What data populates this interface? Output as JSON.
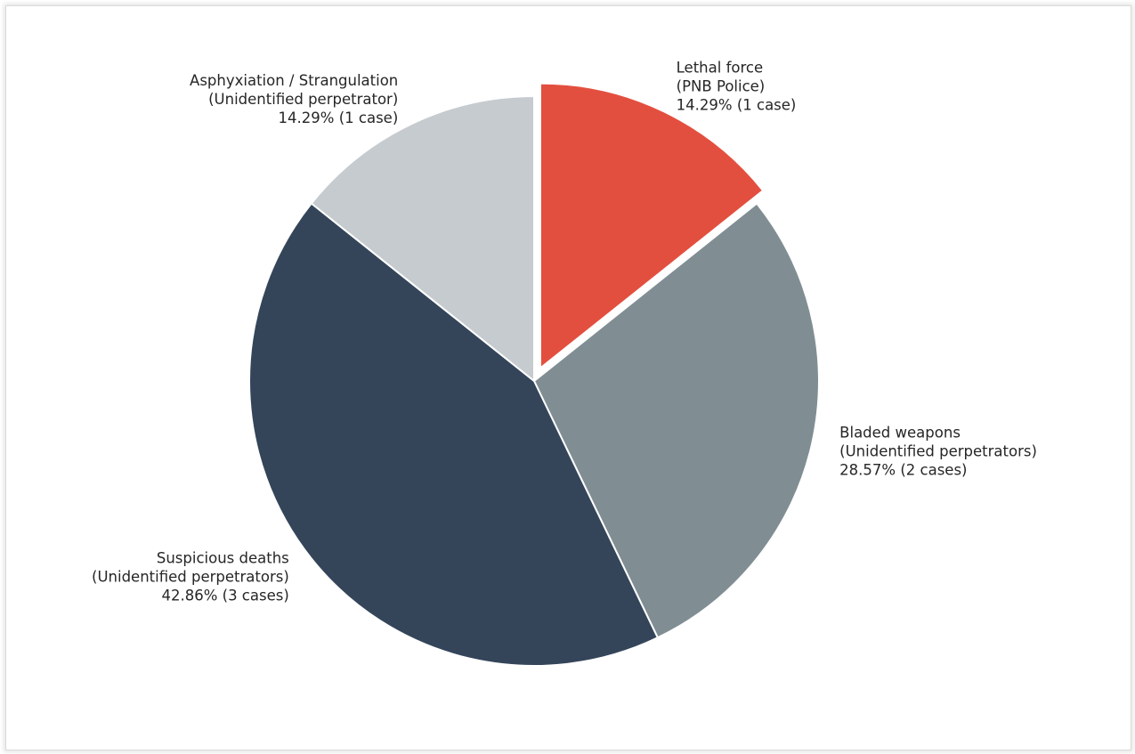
{
  "chart_data": {
    "type": "pie",
    "title": "",
    "start_angle_deg": 90,
    "direction": "clockwise",
    "slices": [
      {
        "label_lines": [
          "Lethal force",
          "(PNB Police)",
          "14.29% (1 case)"
        ],
        "value": 1,
        "percent": 14.29,
        "color": "#e34f3f",
        "exploded": true
      },
      {
        "label_lines": [
          "Bladed weapons",
          "(Unidentified perpetrators)",
          "28.57% (2 cases)"
        ],
        "value": 2,
        "percent": 28.57,
        "color": "#808e94",
        "exploded": false
      },
      {
        "label_lines": [
          "Suspicious deaths",
          "(Unidentified perpetrators)",
          "42.86% (3 cases)"
        ],
        "value": 3,
        "percent": 42.86,
        "color": "#34455a",
        "exploded": false
      },
      {
        "label_lines": [
          "Asphyxiation / Strangulation",
          "(Unidentified perpetrator)",
          "14.29% (1 case)"
        ],
        "value": 1,
        "percent": 14.29,
        "color": "#c6cbcf",
        "exploded": false
      }
    ],
    "edge_color": "#ffffff",
    "legend": "none"
  }
}
